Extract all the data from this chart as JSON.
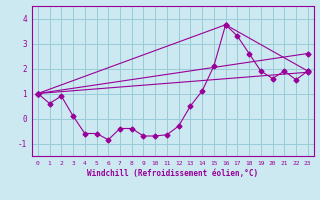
{
  "xlabel": "Windchill (Refroidissement éolien,°C)",
  "bg_color": "#cce8f0",
  "grid_color": "#99ccd8",
  "line_color": "#990099",
  "xlim": [
    -0.5,
    23.5
  ],
  "ylim": [
    -1.5,
    4.5
  ],
  "xticks": [
    0,
    1,
    2,
    3,
    4,
    5,
    6,
    7,
    8,
    9,
    10,
    11,
    12,
    13,
    14,
    15,
    16,
    17,
    18,
    19,
    20,
    21,
    22,
    23
  ],
  "yticks": [
    -1,
    0,
    1,
    2,
    3,
    4
  ],
  "line1_x": [
    0,
    1,
    2,
    3,
    4,
    5,
    6,
    7,
    8,
    9,
    10,
    11,
    12,
    13,
    14,
    15,
    16,
    17,
    18,
    19,
    20,
    21,
    22,
    23
  ],
  "line1_y": [
    1.0,
    0.6,
    0.9,
    0.1,
    -0.6,
    -0.6,
    -0.85,
    -0.4,
    -0.4,
    -0.7,
    -0.7,
    -0.65,
    -0.3,
    0.5,
    1.1,
    2.1,
    3.75,
    3.3,
    2.6,
    1.9,
    1.6,
    1.9,
    1.55,
    1.9
  ],
  "line2_x": [
    0,
    16,
    23
  ],
  "line2_y": [
    1.0,
    3.75,
    1.9
  ],
  "line3_x": [
    0,
    23
  ],
  "line3_y": [
    1.0,
    2.6
  ],
  "line4_x": [
    0,
    23
  ],
  "line4_y": [
    1.0,
    1.85
  ]
}
